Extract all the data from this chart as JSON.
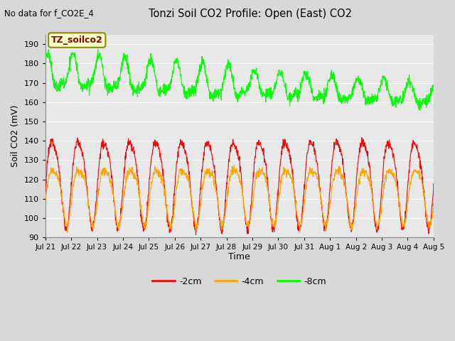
{
  "title": "Tonzi Soil CO2 Profile: Open (East) CO2",
  "subtitle": "No data for f_CO2E_4",
  "ylabel": "Soil CO2 (mV)",
  "xlabel": "Time",
  "ylim": [
    90,
    195
  ],
  "yticks": [
    90,
    100,
    110,
    120,
    130,
    140,
    150,
    160,
    170,
    180,
    190
  ],
  "xtick_labels": [
    "Jul 21",
    "Jul 22",
    "Jul 23",
    "Jul 24",
    "Jul 25",
    "Jul 26",
    "Jul 27",
    "Jul 28",
    "Jul 29",
    "Jul 30",
    "Jul 31",
    "Aug 1",
    "Aug 2",
    "Aug 3",
    "Aug 4",
    "Aug 5"
  ],
  "series": {
    "neg2cm": {
      "color": "#ff0000",
      "label": "-2cm"
    },
    "neg4cm": {
      "color": "#ffa500",
      "label": "-4cm"
    },
    "neg8cm": {
      "color": "#00ff00",
      "label": "-8cm"
    }
  },
  "annotation_box": {
    "text": "TZ_soilco2",
    "color": "#8b0000",
    "bg": "#ffffcc",
    "border": "#8b8b00"
  },
  "plot_bg_color": "#e8e8e8",
  "fig_bg_color": "#d8d8d8",
  "grid_color": "#ffffff",
  "n_days": 15,
  "ppd": 96,
  "seed": 12345
}
